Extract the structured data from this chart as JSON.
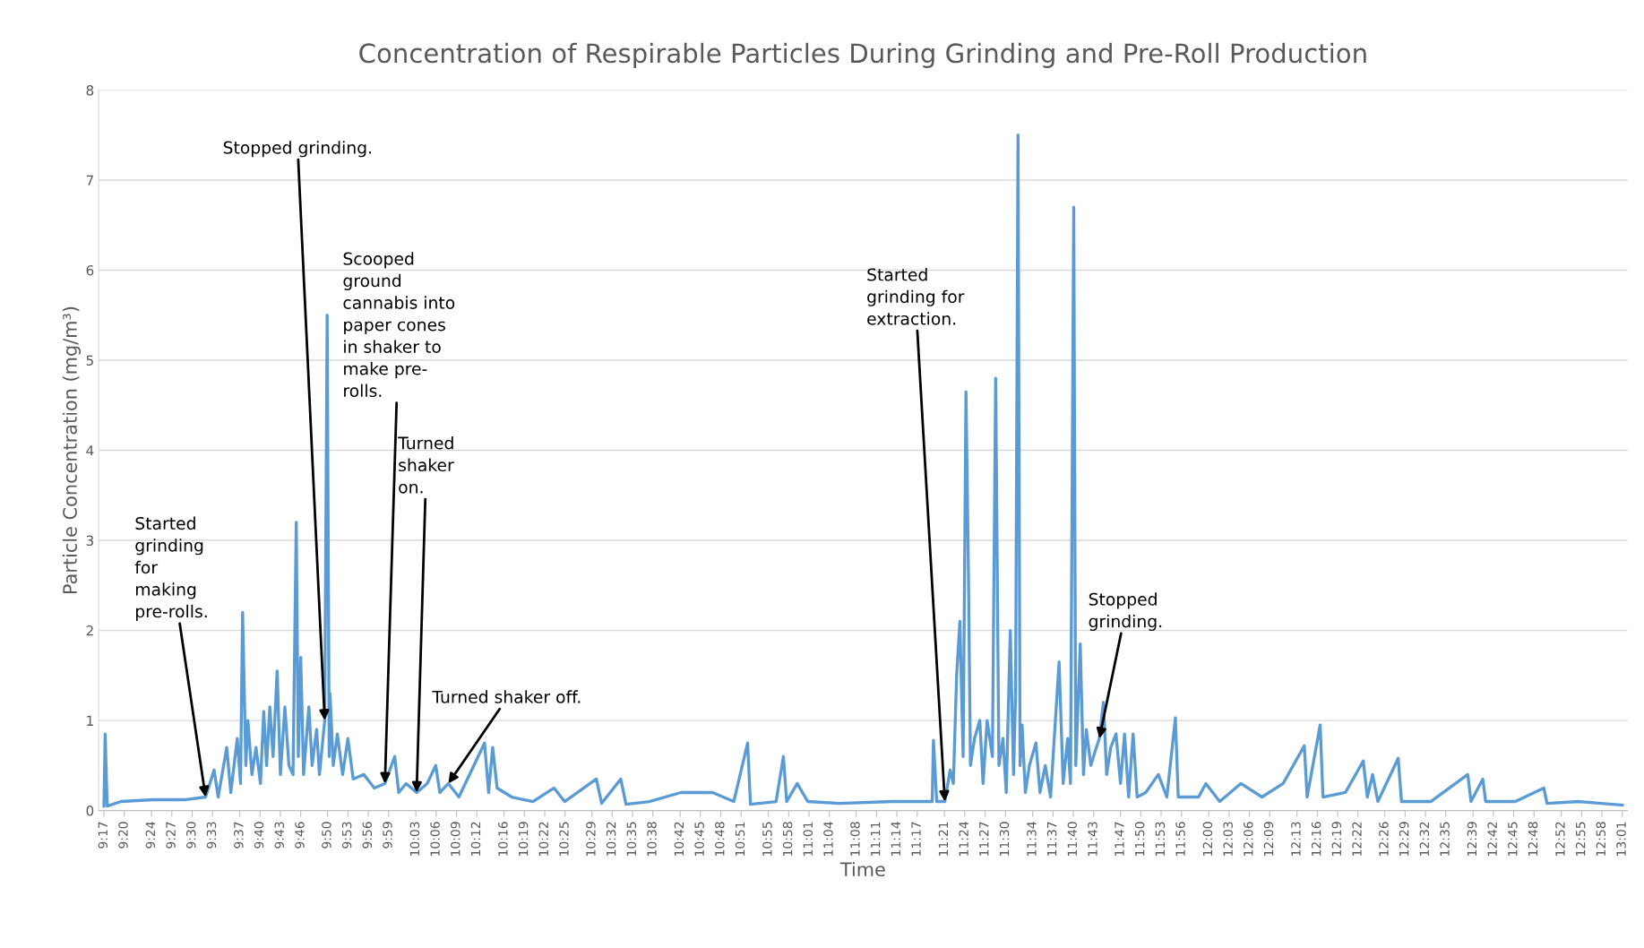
{
  "chart_data": {
    "type": "line",
    "title": "Concentration of Respirable Particles During Grinding and Pre-Roll Production",
    "xlabel": "Time",
    "ylabel": "Particle Concentration (mg/m³)",
    "series": [
      {
        "color": "#5b9bd5",
        "x": [
          9.283,
          9.286,
          9.291,
          9.325,
          9.403,
          9.481,
          9.533,
          9.554,
          9.564,
          9.585,
          9.595,
          9.611,
          9.619,
          9.624,
          9.632,
          9.637,
          9.647,
          9.657,
          9.668,
          9.676,
          9.683,
          9.691,
          9.699,
          9.709,
          9.717,
          9.728,
          9.738,
          9.748,
          9.756,
          9.761,
          9.767,
          9.774,
          9.787,
          9.795,
          9.806,
          9.813,
          9.826,
          9.832,
          9.837,
          9.839,
          9.847,
          9.857,
          9.87,
          9.883,
          9.896,
          9.922,
          9.948,
          9.974,
          9.998,
          10.008,
          10.026,
          10.052,
          10.078,
          10.099,
          10.109,
          10.13,
          10.156,
          10.219,
          10.229,
          10.239,
          10.25,
          10.286,
          10.338,
          10.39,
          10.416,
          10.494,
          10.507,
          10.554,
          10.567,
          10.624,
          10.702,
          10.78,
          10.832,
          10.866,
          10.873,
          10.936,
          10.954,
          10.962,
          10.988,
          11.014,
          11.092,
          11.221,
          11.32,
          11.323,
          11.331,
          11.351,
          11.364,
          11.372,
          11.38,
          11.388,
          11.396,
          11.403,
          11.409,
          11.414,
          11.424,
          11.437,
          11.445,
          11.455,
          11.468,
          11.476,
          11.484,
          11.494,
          11.502,
          11.512,
          11.52,
          11.525,
          11.531,
          11.536,
          11.541,
          11.549,
          11.559,
          11.575,
          11.585,
          11.598,
          11.611,
          11.632,
          11.642,
          11.653,
          11.66,
          11.668,
          11.673,
          11.684,
          11.692,
          11.699,
          11.71,
          11.72,
          11.731,
          11.741,
          11.749,
          11.759,
          11.772,
          11.783,
          11.793,
          11.803,
          11.814,
          11.824,
          11.845,
          11.876,
          11.897,
          11.918,
          11.925,
          11.975,
          11.993,
          12.027,
          12.079,
          12.131,
          12.183,
          12.235,
          12.242,
          12.274,
          12.281,
          12.336,
          12.38,
          12.39,
          12.403,
          12.416,
          12.466,
          12.474,
          12.546,
          12.637,
          12.645,
          12.674,
          12.681,
          12.754,
          12.824,
          12.832,
          12.91,
          13.017
        ],
        "values": [
          0.05,
          0.85,
          0.05,
          0.1,
          0.12,
          0.12,
          0.15,
          0.45,
          0.15,
          0.7,
          0.2,
          0.8,
          0.3,
          2.2,
          0.5,
          1.0,
          0.4,
          0.7,
          0.3,
          1.1,
          0.5,
          1.15,
          0.6,
          1.55,
          0.4,
          1.15,
          0.5,
          0.4,
          3.2,
          0.6,
          1.7,
          0.4,
          1.15,
          0.5,
          0.9,
          0.4,
          1.0,
          5.5,
          0.6,
          1.3,
          0.5,
          0.85,
          0.4,
          0.8,
          0.35,
          0.4,
          0.25,
          0.3,
          0.6,
          0.2,
          0.3,
          0.2,
          0.3,
          0.5,
          0.2,
          0.3,
          0.15,
          0.75,
          0.2,
          0.7,
          0.25,
          0.15,
          0.1,
          0.25,
          0.1,
          0.35,
          0.08,
          0.35,
          0.07,
          0.1,
          0.2,
          0.2,
          0.1,
          0.75,
          0.07,
          0.1,
          0.6,
          0.1,
          0.3,
          0.1,
          0.08,
          0.1,
          0.1,
          0.78,
          0.1,
          0.1,
          0.45,
          0.3,
          1.5,
          2.1,
          0.6,
          4.65,
          2.65,
          0.5,
          0.8,
          1.0,
          0.3,
          1.0,
          0.6,
          4.8,
          0.5,
          0.8,
          0.2,
          2.0,
          0.4,
          1.3,
          7.5,
          0.5,
          0.95,
          0.2,
          0.5,
          0.75,
          0.2,
          0.5,
          0.15,
          1.65,
          0.3,
          0.8,
          0.3,
          6.7,
          0.5,
          1.85,
          0.4,
          0.9,
          0.5,
          0.65,
          0.8,
          1.2,
          0.4,
          0.7,
          0.85,
          0.3,
          0.85,
          0.15,
          0.85,
          0.15,
          0.2,
          0.4,
          0.15,
          1.03,
          0.15,
          0.15,
          0.3,
          0.1,
          0.3,
          0.15,
          0.3,
          0.72,
          0.15,
          0.95,
          0.15,
          0.2,
          0.55,
          0.15,
          0.4,
          0.1,
          0.58,
          0.1,
          0.1,
          0.4,
          0.1,
          0.35,
          0.1,
          0.1,
          0.25,
          0.08,
          0.1,
          0.06
        ]
      }
    ],
    "xlim": [
      9.27,
      13.03
    ],
    "ylim": [
      0,
      8
    ],
    "yticks": [
      0,
      1,
      2,
      3,
      4,
      5,
      6,
      7,
      8
    ],
    "xticks": [
      {
        "value": 9.283,
        "label": "9:17"
      },
      {
        "value": 9.333,
        "label": "9:20"
      },
      {
        "value": 9.4,
        "label": "9:24"
      },
      {
        "value": 9.45,
        "label": "9:27"
      },
      {
        "value": 9.5,
        "label": "9:30"
      },
      {
        "value": 9.55,
        "label": "9:33"
      },
      {
        "value": 9.617,
        "label": "9:37"
      },
      {
        "value": 9.667,
        "label": "9:40"
      },
      {
        "value": 9.717,
        "label": "9:43"
      },
      {
        "value": 9.767,
        "label": "9:46"
      },
      {
        "value": 9.833,
        "label": "9:50"
      },
      {
        "value": 9.883,
        "label": "9:53"
      },
      {
        "value": 9.933,
        "label": "9:56"
      },
      {
        "value": 9.983,
        "label": "9:59"
      },
      {
        "value": 10.05,
        "label": "10:03"
      },
      {
        "value": 10.1,
        "label": "10:06"
      },
      {
        "value": 10.15,
        "label": "10:09"
      },
      {
        "value": 10.2,
        "label": "10:12"
      },
      {
        "value": 10.267,
        "label": "10:16"
      },
      {
        "value": 10.317,
        "label": "10:19"
      },
      {
        "value": 10.367,
        "label": "10:22"
      },
      {
        "value": 10.417,
        "label": "10:25"
      },
      {
        "value": 10.483,
        "label": "10:29"
      },
      {
        "value": 10.533,
        "label": "10:32"
      },
      {
        "value": 10.583,
        "label": "10:35"
      },
      {
        "value": 10.633,
        "label": "10:38"
      },
      {
        "value": 10.7,
        "label": "10:42"
      },
      {
        "value": 10.75,
        "label": "10:45"
      },
      {
        "value": 10.8,
        "label": "10:48"
      },
      {
        "value": 10.85,
        "label": "10:51"
      },
      {
        "value": 10.917,
        "label": "10:55"
      },
      {
        "value": 10.967,
        "label": "10:58"
      },
      {
        "value": 11.017,
        "label": "11:01"
      },
      {
        "value": 11.067,
        "label": "11:04"
      },
      {
        "value": 11.133,
        "label": "11:08"
      },
      {
        "value": 11.183,
        "label": "11:11"
      },
      {
        "value": 11.233,
        "label": "11:14"
      },
      {
        "value": 11.283,
        "label": "11:17"
      },
      {
        "value": 11.35,
        "label": "11:21"
      },
      {
        "value": 11.4,
        "label": "11:24"
      },
      {
        "value": 11.45,
        "label": "11:27"
      },
      {
        "value": 11.5,
        "label": "11:30"
      },
      {
        "value": 11.567,
        "label": "11:34"
      },
      {
        "value": 11.617,
        "label": "11:37"
      },
      {
        "value": 11.667,
        "label": "11:40"
      },
      {
        "value": 11.717,
        "label": "11:43"
      },
      {
        "value": 11.783,
        "label": "11:47"
      },
      {
        "value": 11.833,
        "label": "11:50"
      },
      {
        "value": 11.883,
        "label": "11:53"
      },
      {
        "value": 11.933,
        "label": "11:56"
      },
      {
        "value": 12.0,
        "label": "12:00"
      },
      {
        "value": 12.05,
        "label": "12:03"
      },
      {
        "value": 12.1,
        "label": "12:06"
      },
      {
        "value": 12.15,
        "label": "12:09"
      },
      {
        "value": 12.217,
        "label": "12:13"
      },
      {
        "value": 12.267,
        "label": "12:16"
      },
      {
        "value": 12.317,
        "label": "12:19"
      },
      {
        "value": 12.367,
        "label": "12:22"
      },
      {
        "value": 12.433,
        "label": "12:26"
      },
      {
        "value": 12.483,
        "label": "12:29"
      },
      {
        "value": 12.533,
        "label": "12:32"
      },
      {
        "value": 12.583,
        "label": "12:35"
      },
      {
        "value": 12.65,
        "label": "12:39"
      },
      {
        "value": 12.7,
        "label": "12:42"
      },
      {
        "value": 12.75,
        "label": "12:45"
      },
      {
        "value": 12.8,
        "label": "12:48"
      },
      {
        "value": 12.867,
        "label": "12:52"
      },
      {
        "value": 12.917,
        "label": "12:55"
      },
      {
        "value": 12.967,
        "label": "12:58"
      },
      {
        "value": 13.017,
        "label": "13:01"
      }
    ],
    "grid": "y",
    "annotations": [
      {
        "text": "Started\ngrinding\nfor\nmaking\npre-rolls.",
        "x": 9.533,
        "y": 0.15
      },
      {
        "text": "Stopped grinding.",
        "x": 9.826,
        "y": 1.0
      },
      {
        "text": "Scooped\nground\ncannabis into\npaper cones\nin shaker to\nmake pre-\nrolls.",
        "x": 9.974,
        "y": 0.3
      },
      {
        "text": "Turned\nshaker\non.",
        "x": 10.052,
        "y": 0.2
      },
      {
        "text": "Turned shaker off.",
        "x": 10.13,
        "y": 0.3
      },
      {
        "text": "Started\ngrinding for\nextraction.",
        "x": 11.351,
        "y": 0.1
      },
      {
        "text": "Stopped\ngrinding.",
        "x": 11.731,
        "y": 0.8
      }
    ]
  }
}
